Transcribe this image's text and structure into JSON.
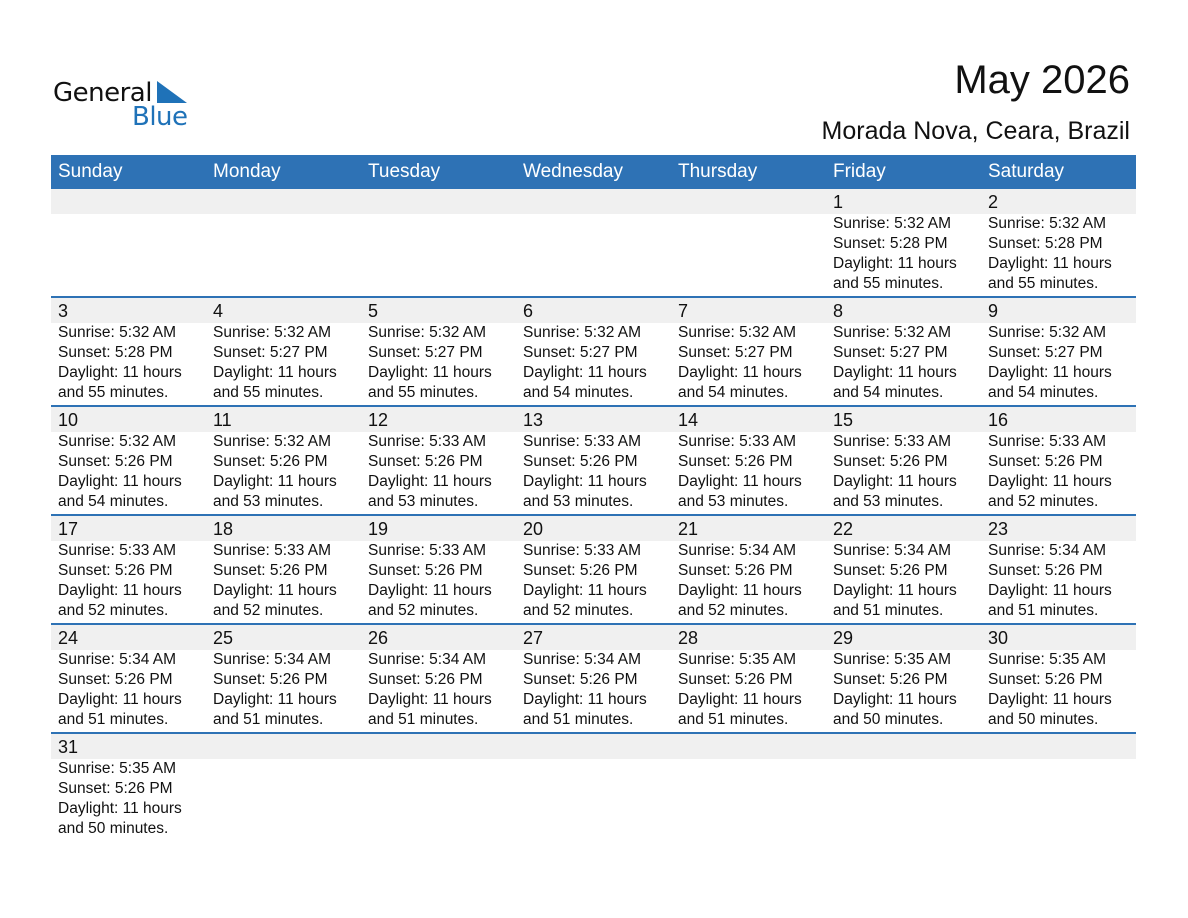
{
  "logo": {
    "text_general": "General",
    "text_blue": "Blue",
    "brand_color": "#1f72b8"
  },
  "header": {
    "title": "May 2026",
    "location": "Morada Nova, Ceara, Brazil"
  },
  "colors": {
    "header_bg": "#2e72b5",
    "date_band": "#f0f0f0"
  },
  "weekdays": [
    "Sunday",
    "Monday",
    "Tuesday",
    "Wednesday",
    "Thursday",
    "Friday",
    "Saturday"
  ],
  "weeks": [
    [
      null,
      null,
      null,
      null,
      null,
      {
        "day": "1",
        "sunrise": "Sunrise: 5:32 AM",
        "sunset": "Sunset: 5:28 PM",
        "daylight": "Daylight: 11 hours",
        "minutes": "and 55 minutes."
      },
      {
        "day": "2",
        "sunrise": "Sunrise: 5:32 AM",
        "sunset": "Sunset: 5:28 PM",
        "daylight": "Daylight: 11 hours",
        "minutes": "and 55 minutes."
      }
    ],
    [
      {
        "day": "3",
        "sunrise": "Sunrise: 5:32 AM",
        "sunset": "Sunset: 5:28 PM",
        "daylight": "Daylight: 11 hours",
        "minutes": "and 55 minutes."
      },
      {
        "day": "4",
        "sunrise": "Sunrise: 5:32 AM",
        "sunset": "Sunset: 5:27 PM",
        "daylight": "Daylight: 11 hours",
        "minutes": "and 55 minutes."
      },
      {
        "day": "5",
        "sunrise": "Sunrise: 5:32 AM",
        "sunset": "Sunset: 5:27 PM",
        "daylight": "Daylight: 11 hours",
        "minutes": "and 55 minutes."
      },
      {
        "day": "6",
        "sunrise": "Sunrise: 5:32 AM",
        "sunset": "Sunset: 5:27 PM",
        "daylight": "Daylight: 11 hours",
        "minutes": "and 54 minutes."
      },
      {
        "day": "7",
        "sunrise": "Sunrise: 5:32 AM",
        "sunset": "Sunset: 5:27 PM",
        "daylight": "Daylight: 11 hours",
        "minutes": "and 54 minutes."
      },
      {
        "day": "8",
        "sunrise": "Sunrise: 5:32 AM",
        "sunset": "Sunset: 5:27 PM",
        "daylight": "Daylight: 11 hours",
        "minutes": "and 54 minutes."
      },
      {
        "day": "9",
        "sunrise": "Sunrise: 5:32 AM",
        "sunset": "Sunset: 5:27 PM",
        "daylight": "Daylight: 11 hours",
        "minutes": "and 54 minutes."
      }
    ],
    [
      {
        "day": "10",
        "sunrise": "Sunrise: 5:32 AM",
        "sunset": "Sunset: 5:26 PM",
        "daylight": "Daylight: 11 hours",
        "minutes": "and 54 minutes."
      },
      {
        "day": "11",
        "sunrise": "Sunrise: 5:32 AM",
        "sunset": "Sunset: 5:26 PM",
        "daylight": "Daylight: 11 hours",
        "minutes": "and 53 minutes."
      },
      {
        "day": "12",
        "sunrise": "Sunrise: 5:33 AM",
        "sunset": "Sunset: 5:26 PM",
        "daylight": "Daylight: 11 hours",
        "minutes": "and 53 minutes."
      },
      {
        "day": "13",
        "sunrise": "Sunrise: 5:33 AM",
        "sunset": "Sunset: 5:26 PM",
        "daylight": "Daylight: 11 hours",
        "minutes": "and 53 minutes."
      },
      {
        "day": "14",
        "sunrise": "Sunrise: 5:33 AM",
        "sunset": "Sunset: 5:26 PM",
        "daylight": "Daylight: 11 hours",
        "minutes": "and 53 minutes."
      },
      {
        "day": "15",
        "sunrise": "Sunrise: 5:33 AM",
        "sunset": "Sunset: 5:26 PM",
        "daylight": "Daylight: 11 hours",
        "minutes": "and 53 minutes."
      },
      {
        "day": "16",
        "sunrise": "Sunrise: 5:33 AM",
        "sunset": "Sunset: 5:26 PM",
        "daylight": "Daylight: 11 hours",
        "minutes": "and 52 minutes."
      }
    ],
    [
      {
        "day": "17",
        "sunrise": "Sunrise: 5:33 AM",
        "sunset": "Sunset: 5:26 PM",
        "daylight": "Daylight: 11 hours",
        "minutes": "and 52 minutes."
      },
      {
        "day": "18",
        "sunrise": "Sunrise: 5:33 AM",
        "sunset": "Sunset: 5:26 PM",
        "daylight": "Daylight: 11 hours",
        "minutes": "and 52 minutes."
      },
      {
        "day": "19",
        "sunrise": "Sunrise: 5:33 AM",
        "sunset": "Sunset: 5:26 PM",
        "daylight": "Daylight: 11 hours",
        "minutes": "and 52 minutes."
      },
      {
        "day": "20",
        "sunrise": "Sunrise: 5:33 AM",
        "sunset": "Sunset: 5:26 PM",
        "daylight": "Daylight: 11 hours",
        "minutes": "and 52 minutes."
      },
      {
        "day": "21",
        "sunrise": "Sunrise: 5:34 AM",
        "sunset": "Sunset: 5:26 PM",
        "daylight": "Daylight: 11 hours",
        "minutes": "and 52 minutes."
      },
      {
        "day": "22",
        "sunrise": "Sunrise: 5:34 AM",
        "sunset": "Sunset: 5:26 PM",
        "daylight": "Daylight: 11 hours",
        "minutes": "and 51 minutes."
      },
      {
        "day": "23",
        "sunrise": "Sunrise: 5:34 AM",
        "sunset": "Sunset: 5:26 PM",
        "daylight": "Daylight: 11 hours",
        "minutes": "and 51 minutes."
      }
    ],
    [
      {
        "day": "24",
        "sunrise": "Sunrise: 5:34 AM",
        "sunset": "Sunset: 5:26 PM",
        "daylight": "Daylight: 11 hours",
        "minutes": "and 51 minutes."
      },
      {
        "day": "25",
        "sunrise": "Sunrise: 5:34 AM",
        "sunset": "Sunset: 5:26 PM",
        "daylight": "Daylight: 11 hours",
        "minutes": "and 51 minutes."
      },
      {
        "day": "26",
        "sunrise": "Sunrise: 5:34 AM",
        "sunset": "Sunset: 5:26 PM",
        "daylight": "Daylight: 11 hours",
        "minutes": "and 51 minutes."
      },
      {
        "day": "27",
        "sunrise": "Sunrise: 5:34 AM",
        "sunset": "Sunset: 5:26 PM",
        "daylight": "Daylight: 11 hours",
        "minutes": "and 51 minutes."
      },
      {
        "day": "28",
        "sunrise": "Sunrise: 5:35 AM",
        "sunset": "Sunset: 5:26 PM",
        "daylight": "Daylight: 11 hours",
        "minutes": "and 51 minutes."
      },
      {
        "day": "29",
        "sunrise": "Sunrise: 5:35 AM",
        "sunset": "Sunset: 5:26 PM",
        "daylight": "Daylight: 11 hours",
        "minutes": "and 50 minutes."
      },
      {
        "day": "30",
        "sunrise": "Sunrise: 5:35 AM",
        "sunset": "Sunset: 5:26 PM",
        "daylight": "Daylight: 11 hours",
        "minutes": "and 50 minutes."
      }
    ],
    [
      {
        "day": "31",
        "sunrise": "Sunrise: 5:35 AM",
        "sunset": "Sunset: 5:26 PM",
        "daylight": "Daylight: 11 hours",
        "minutes": "and 50 minutes."
      },
      null,
      null,
      null,
      null,
      null,
      null
    ]
  ]
}
